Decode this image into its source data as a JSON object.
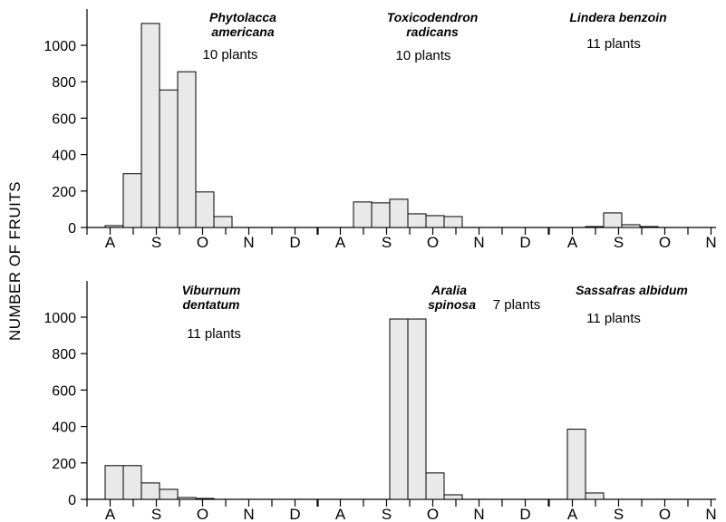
{
  "y_label": "NUMBER OF FRUITS",
  "colors": {
    "bar_fill": "#e9e9e9",
    "stroke": "#000000"
  },
  "chart_data": [
    {
      "type": "bar",
      "panel": "top",
      "months": [
        "A",
        "S",
        "O",
        "N",
        "D"
      ],
      "ylim": [
        0,
        1100
      ],
      "yticks": [
        "0",
        "200",
        "400",
        "600",
        "800",
        "1000"
      ],
      "groups": [
        {
          "species": "Phytolacca americana",
          "species_lines": [
            "Phytolacca",
            "americana"
          ],
          "plants": "10 plants",
          "values": [
            0,
            10,
            295,
            1120,
            755,
            855,
            195,
            60,
            0,
            0
          ]
        },
        {
          "species": "Toxicodendron radicans",
          "species_lines": [
            "Toxicodendron",
            "radicans"
          ],
          "plants": "10 plants",
          "values": [
            0,
            0,
            140,
            135,
            155,
            75,
            65,
            60,
            0,
            0
          ]
        },
        {
          "species": "Lindera benzoin",
          "species_lines": [
            "Lindera benzoin"
          ],
          "plants": "11 plants",
          "values": [
            0,
            0,
            5,
            80,
            15,
            5,
            0,
            0,
            0,
            0
          ]
        }
      ]
    },
    {
      "type": "bar",
      "panel": "bottom",
      "months": [
        "A",
        "S",
        "O",
        "N",
        "D"
      ],
      "ylim": [
        0,
        1100
      ],
      "yticks": [
        "0",
        "200",
        "400",
        "600",
        "800",
        "1000"
      ],
      "groups": [
        {
          "species": "Viburnum dentatum",
          "species_lines": [
            "Viburnum",
            "dentatum"
          ],
          "plants": "11 plants",
          "values": [
            0,
            185,
            185,
            90,
            55,
            10,
            5,
            0,
            0,
            0
          ]
        },
        {
          "species": "Aralia spinosa",
          "species_lines": [
            "Aralia",
            "spinosa"
          ],
          "plants": "7 plants",
          "values": [
            0,
            0,
            0,
            0,
            990,
            990,
            145,
            25,
            0,
            0
          ]
        },
        {
          "species": "Sassafras albidum",
          "species_lines": [
            "Sassafras albidum"
          ],
          "plants": "11 plants",
          "values": [
            0,
            385,
            35,
            0,
            0,
            0,
            0,
            0,
            0,
            0
          ]
        }
      ]
    }
  ]
}
